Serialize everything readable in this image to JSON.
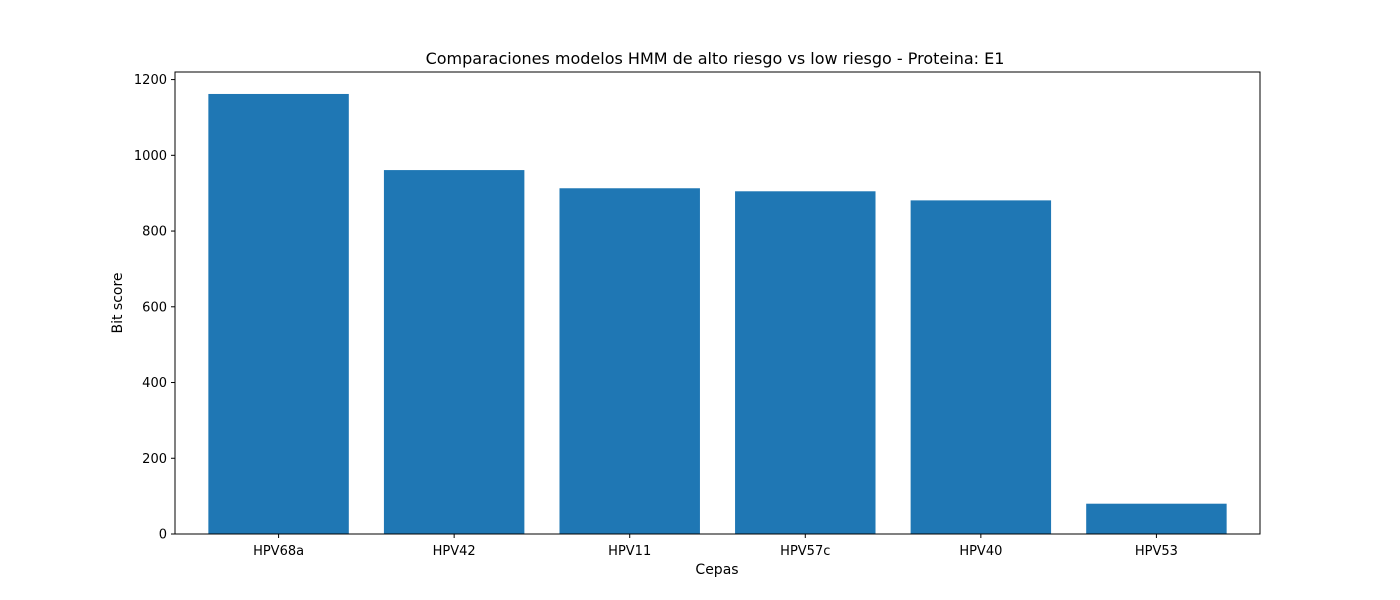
{
  "chart_data": {
    "type": "bar",
    "title": "Comparaciones modelos HMM de alto riesgo vs low riesgo - Proteina: E1",
    "xlabel": "Cepas",
    "ylabel": "Bit score",
    "categories": [
      "HPV68a",
      "HPV42",
      "HPV11",
      "HPV57c",
      "HPV40",
      "HPV53"
    ],
    "values": [
      1162,
      961,
      913,
      905,
      881,
      80
    ],
    "ylim": [
      0,
      1220
    ],
    "yticks": [
      0,
      200,
      400,
      600,
      800,
      1000,
      1200
    ],
    "grid": false,
    "legend": "none"
  },
  "colors": {
    "bar": "#1f77b4",
    "axes": "#000000",
    "background": "#ffffff"
  }
}
